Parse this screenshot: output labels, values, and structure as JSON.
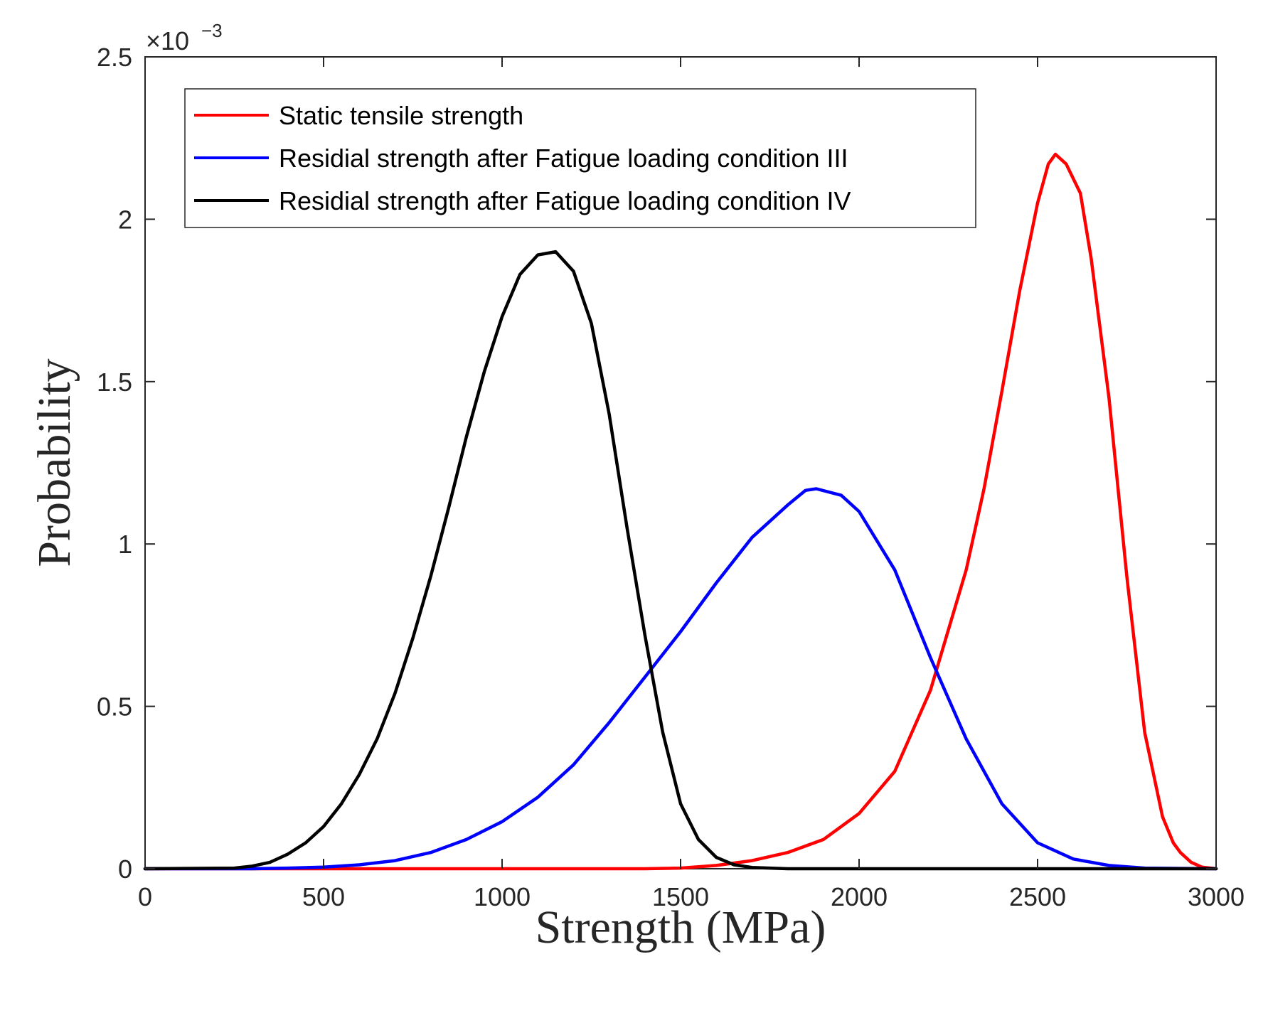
{
  "chart_data": {
    "type": "line",
    "title": "",
    "xlabel": "Strength (MPa)",
    "ylabel": "Probability",
    "xlim": [
      0,
      3000
    ],
    "ylim": [
      0,
      2.5
    ],
    "y_multiplier_base": "×10",
    "y_multiplier_exponent": "−3",
    "x_ticks": [
      0,
      500,
      1000,
      1500,
      2000,
      2500,
      3000
    ],
    "y_ticks": [
      0,
      0.5,
      1,
      1.5,
      2,
      2.5
    ],
    "x_tick_labels": [
      "0",
      "500",
      "1000",
      "1500",
      "2000",
      "2500",
      "3000"
    ],
    "y_tick_labels": [
      "0",
      "0.5",
      "1",
      "1.5",
      "2",
      "2.5"
    ],
    "grid": false,
    "legend_position": "top-left",
    "series": [
      {
        "name": "Static tensile strength",
        "color": "#ff0000",
        "x": [
          0,
          1200,
          1400,
          1500,
          1600,
          1700,
          1800,
          1900,
          2000,
          2100,
          2200,
          2300,
          2350,
          2400,
          2450,
          2500,
          2530,
          2550,
          2580,
          2620,
          2650,
          2700,
          2750,
          2800,
          2850,
          2880,
          2900,
          2930,
          2960,
          3000
        ],
        "values": [
          0,
          0,
          0,
          0.002,
          0.01,
          0.025,
          0.05,
          0.09,
          0.17,
          0.3,
          0.55,
          0.92,
          1.17,
          1.47,
          1.78,
          2.05,
          2.17,
          2.2,
          2.17,
          2.08,
          1.88,
          1.45,
          0.9,
          0.42,
          0.16,
          0.08,
          0.05,
          0.02,
          0.005,
          0
        ]
      },
      {
        "name": "Residial strength after Fatigue loading condition III",
        "color": "#0000ff",
        "x": [
          0,
          300,
          400,
          500,
          600,
          700,
          800,
          900,
          1000,
          1100,
          1200,
          1300,
          1400,
          1500,
          1600,
          1700,
          1800,
          1850,
          1880,
          1950,
          2000,
          2100,
          2200,
          2300,
          2400,
          2500,
          2600,
          2700,
          2800,
          3000
        ],
        "values": [
          0,
          0,
          0.002,
          0.005,
          0.012,
          0.025,
          0.05,
          0.09,
          0.145,
          0.22,
          0.32,
          0.45,
          0.59,
          0.73,
          0.88,
          1.02,
          1.12,
          1.165,
          1.17,
          1.15,
          1.1,
          0.92,
          0.65,
          0.4,
          0.2,
          0.08,
          0.03,
          0.01,
          0.002,
          0
        ]
      },
      {
        "name": "Residial strength after Fatigue loading condition IV",
        "color": "#000000",
        "x": [
          0,
          250,
          300,
          350,
          400,
          450,
          500,
          550,
          600,
          650,
          700,
          750,
          800,
          850,
          900,
          950,
          1000,
          1050,
          1100,
          1150,
          1200,
          1250,
          1300,
          1350,
          1400,
          1450,
          1500,
          1550,
          1600,
          1650,
          1700,
          1800,
          3000
        ],
        "values": [
          0,
          0.002,
          0.008,
          0.02,
          0.045,
          0.08,
          0.13,
          0.2,
          0.29,
          0.4,
          0.54,
          0.71,
          0.9,
          1.11,
          1.33,
          1.53,
          1.7,
          1.83,
          1.89,
          1.9,
          1.84,
          1.68,
          1.4,
          1.05,
          0.72,
          0.42,
          0.2,
          0.09,
          0.035,
          0.012,
          0.004,
          0,
          0
        ]
      }
    ]
  }
}
